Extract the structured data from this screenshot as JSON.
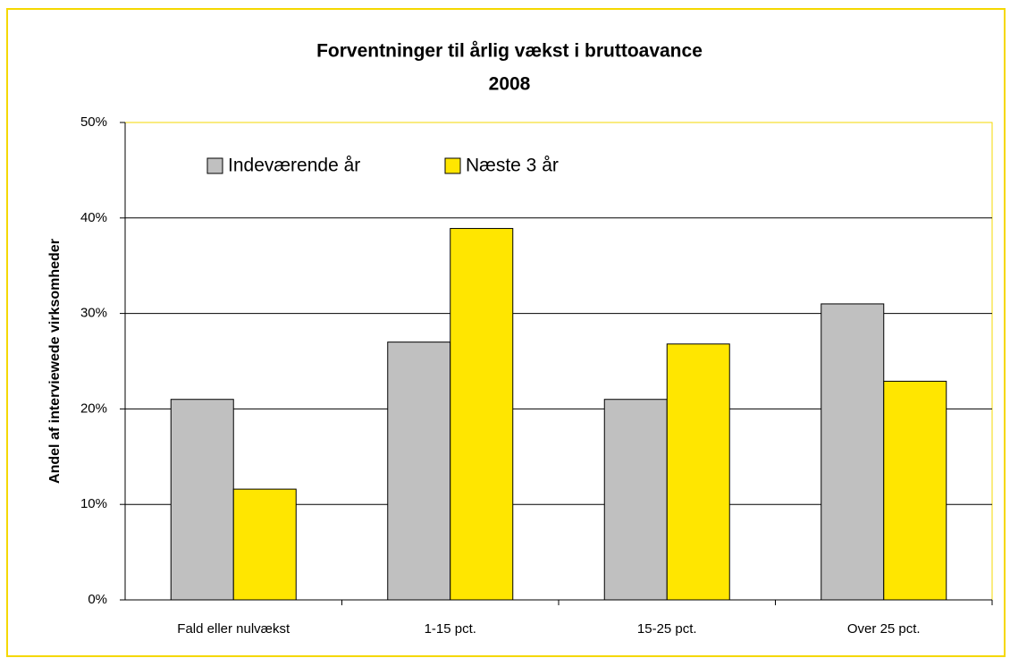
{
  "chart_data": {
    "type": "bar",
    "title": "Forventninger til årlig vækst i bruttoavance",
    "subtitle": "2008",
    "y_label": "Andel af interviewede virksomheder",
    "categories": [
      "Fald eller nulvækst",
      "1-15 pct.",
      "15-25 pct.",
      "Over 25 pct."
    ],
    "series": [
      {
        "name": "Indeværende år",
        "color": "#c0c0c0",
        "values": [
          21,
          27,
          21,
          31
        ]
      },
      {
        "name": "Næste 3 år",
        "color": "#ffe600",
        "values": [
          11.6,
          38.9,
          26.8,
          22.9
        ]
      }
    ],
    "ylim": [
      0,
      50
    ],
    "yticks": [
      {
        "value": 0,
        "label": "0%"
      },
      {
        "value": 10,
        "label": "10%"
      },
      {
        "value": 20,
        "label": "20%"
      },
      {
        "value": 30,
        "label": "30%"
      },
      {
        "value": 40,
        "label": "40%"
      },
      {
        "value": 50,
        "label": "50%"
      }
    ],
    "grid": true,
    "legend": "top-left"
  }
}
